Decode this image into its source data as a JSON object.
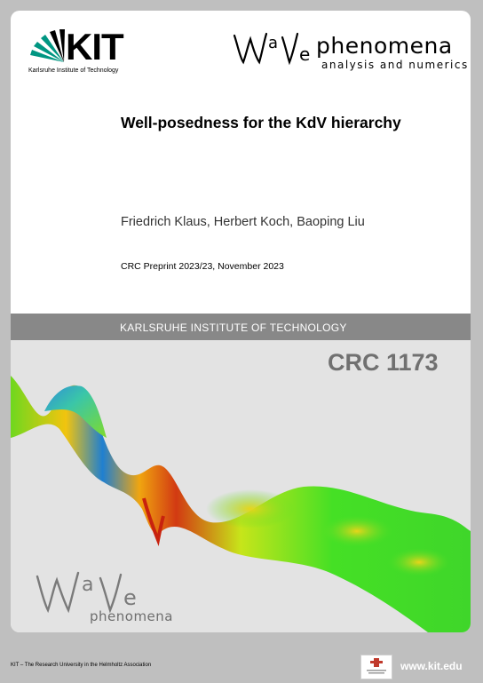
{
  "header": {
    "kit_logo_text": "KIT",
    "kit_logo_subtitle": "Karlsruhe Institute of Technology",
    "wave_logo_text": "phenomena",
    "wave_logo_subtitle": "analysis and numerics"
  },
  "document": {
    "title": "Well-posedness for the KdV hierarchy",
    "authors": "Friedrich Klaus, Herbert Koch, Baoping Liu",
    "preprint": "CRC Preprint 2023/23, November 2023"
  },
  "band": {
    "text": "KARLSRUHE INSTITUTE OF TECHNOLOGY"
  },
  "visual": {
    "crc_label": "CRC 1173",
    "wave_logo_text": "phenomena"
  },
  "footer": {
    "association_text": "KIT – The Research University in the Helmholtz Association",
    "url": "www.kit.edu"
  },
  "colors": {
    "band": "#888888",
    "background": "#bfbfbf",
    "kit_green": "#009682",
    "crc_gray": "#707070"
  }
}
